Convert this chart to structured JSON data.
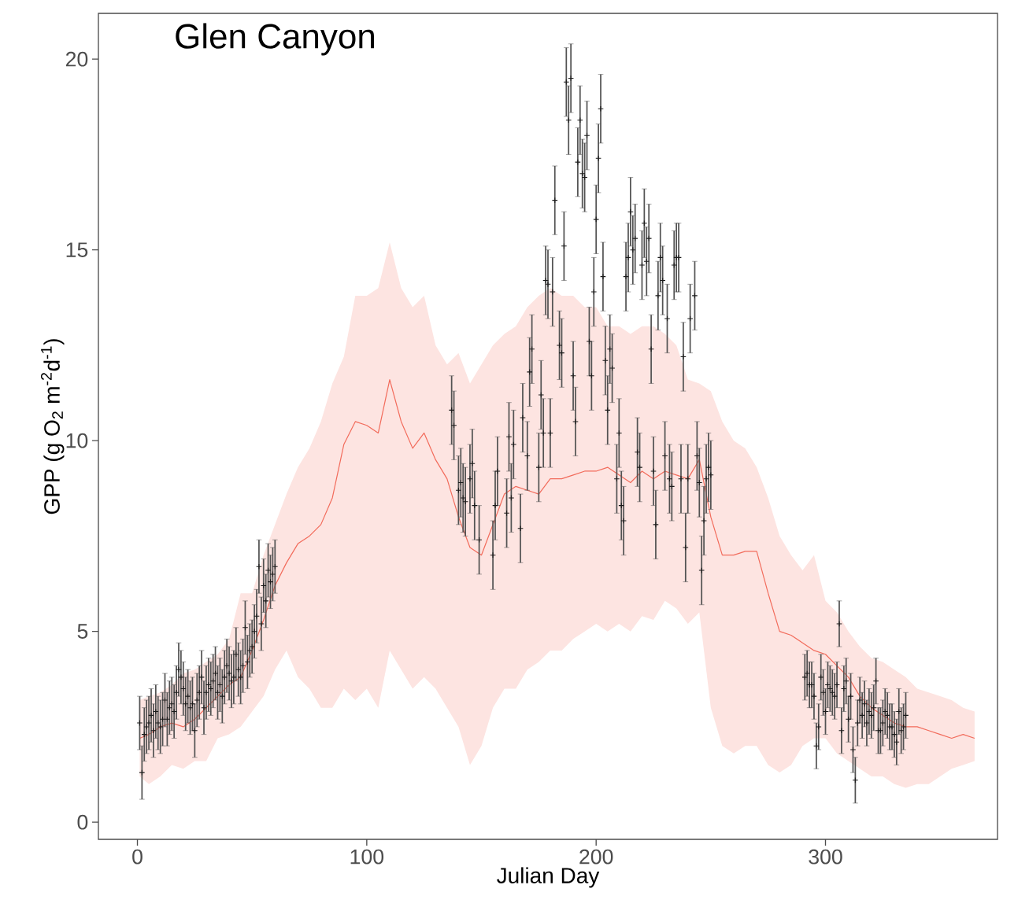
{
  "chart_data": {
    "type": "line",
    "title": "Glen Canyon",
    "xlabel": "Julian Day",
    "ylabel": "GPP (g O$_{2}$ m$^{-2}$d$^{-1}$)",
    "xlim": [
      -17,
      375
    ],
    "ylim": [
      -0.45,
      21.2
    ],
    "xticks": [
      0,
      100,
      200,
      300
    ],
    "yticks": [
      0,
      5,
      10,
      15,
      20
    ],
    "series": [
      {
        "color": "#f26b5b",
        "x": [
          1,
          5,
          10,
          15,
          20,
          25,
          30,
          35,
          40,
          45,
          50,
          55,
          60,
          65,
          70,
          75,
          80,
          85,
          90,
          95,
          100,
          105,
          110,
          115,
          120,
          125,
          130,
          135,
          140,
          145,
          150,
          155,
          160,
          165,
          170,
          175,
          180,
          185,
          190,
          195,
          200,
          205,
          210,
          215,
          220,
          225,
          230,
          235,
          240,
          245,
          250,
          255,
          260,
          265,
          270,
          275,
          280,
          285,
          290,
          295,
          300,
          305,
          310,
          315,
          320,
          325,
          330,
          335,
          340,
          345,
          350,
          355,
          360,
          365
        ],
        "lower": [
          1.2,
          1.0,
          1.2,
          1.5,
          1.4,
          1.6,
          1.6,
          2.2,
          2.3,
          2.5,
          2.9,
          3.3,
          4.0,
          4.5,
          3.8,
          3.5,
          3.0,
          3.0,
          3.5,
          3.2,
          3.5,
          3.0,
          4.5,
          4.0,
          3.5,
          3.8,
          3.5,
          3.0,
          2.5,
          1.5,
          2.0,
          3.0,
          3.5,
          3.5,
          4.0,
          4.2,
          4.5,
          4.5,
          4.8,
          5.0,
          5.2,
          5.0,
          5.2,
          5.0,
          5.4,
          5.3,
          5.8,
          5.6,
          5.2,
          5.5,
          3.0,
          2.0,
          1.8,
          2.0,
          2.0,
          1.5,
          1.3,
          1.5,
          2.0,
          2.2,
          2.2,
          1.8,
          1.6,
          1.4,
          1.2,
          1.2,
          1.0,
          0.9,
          1.0,
          1.0,
          1.2,
          1.4,
          1.5,
          1.6
        ],
        "upper": [
          3.2,
          3.3,
          3.4,
          3.6,
          3.9,
          4.0,
          4.2,
          4.4,
          4.8,
          6.0,
          6.0,
          7.0,
          7.8,
          8.6,
          9.3,
          9.8,
          10.5,
          11.5,
          12.2,
          13.8,
          13.8,
          14.0,
          15.2,
          14.0,
          13.5,
          13.8,
          12.5,
          12.0,
          12.3,
          11.5,
          12.0,
          12.5,
          12.8,
          13.0,
          13.5,
          13.8,
          14.0,
          13.8,
          13.8,
          13.5,
          13.5,
          13.0,
          13.0,
          12.8,
          13.0,
          13.0,
          12.8,
          12.5,
          11.6,
          11.5,
          11.3,
          10.5,
          10.0,
          9.8,
          9.3,
          8.5,
          7.5,
          7.0,
          6.6,
          7.0,
          5.8,
          5.5,
          5.0,
          4.6,
          4.3,
          4.2,
          4.0,
          3.8,
          3.5,
          3.4,
          3.3,
          3.2,
          3.0,
          2.9
        ],
        "values": [
          2.2,
          2.3,
          2.5,
          2.6,
          2.5,
          2.7,
          3.0,
          3.3,
          3.6,
          3.8,
          4.5,
          5.3,
          6.2,
          6.8,
          7.3,
          7.5,
          7.8,
          8.5,
          9.9,
          10.5,
          10.4,
          10.2,
          11.6,
          10.5,
          9.8,
          10.2,
          9.5,
          9.0,
          8.0,
          7.2,
          7.0,
          7.8,
          8.6,
          8.8,
          8.7,
          8.6,
          9.0,
          9.0,
          9.1,
          9.2,
          9.2,
          9.3,
          9.1,
          8.9,
          9.2,
          9.0,
          9.2,
          9.1,
          9.0,
          9.5,
          8.0,
          7.0,
          7.0,
          7.1,
          7.1,
          6.0,
          5.0,
          4.9,
          4.7,
          4.5,
          4.4,
          4.1,
          3.8,
          3.3,
          3.0,
          2.8,
          2.6,
          2.5,
          2.5,
          2.4,
          2.3,
          2.2,
          2.3,
          2.2
        ]
      },
      {
        "type": "scatter",
        "color": "#1a1a1a",
        "marker": "cross",
        "x": [
          1,
          2,
          3,
          4,
          5,
          6,
          7,
          8,
          9,
          10,
          11,
          12,
          13,
          14,
          15,
          16,
          17,
          18,
          19,
          20,
          21,
          22,
          23,
          24,
          25,
          26,
          27,
          28,
          29,
          30,
          31,
          32,
          33,
          34,
          35,
          36,
          37,
          38,
          39,
          40,
          41,
          42,
          43,
          44,
          45,
          46,
          47,
          48,
          49,
          50,
          51,
          52,
          53,
          54,
          55,
          56,
          57,
          58,
          59,
          60,
          137,
          138,
          140,
          141,
          142,
          143,
          145,
          146,
          147,
          149,
          155,
          156,
          157,
          161,
          162,
          163,
          164,
          167,
          168,
          170,
          171,
          172,
          175,
          176,
          177,
          178,
          179,
          180,
          181,
          182,
          184,
          185,
          186,
          187,
          188,
          189,
          190,
          191,
          192,
          193,
          194,
          195,
          196,
          197,
          198,
          199,
          200,
          201,
          202,
          203,
          204,
          205,
          206,
          207,
          209,
          210,
          211,
          212,
          213,
          214,
          215,
          216,
          217,
          218,
          219,
          220,
          221,
          222,
          223,
          224,
          225,
          226,
          227,
          228,
          229,
          230,
          231,
          232,
          233,
          234,
          235,
          236,
          237,
          238,
          239,
          240,
          241,
          243,
          244,
          245,
          246,
          247,
          248,
          249,
          250,
          291,
          292,
          293,
          294,
          295,
          296,
          297,
          298,
          299,
          300,
          301,
          302,
          303,
          304,
          305,
          306,
          307,
          308,
          309,
          310,
          311,
          312,
          313,
          314,
          315,
          316,
          317,
          318,
          319,
          320,
          321,
          322,
          323,
          324,
          325,
          326,
          327,
          328,
          329,
          330,
          331,
          332,
          333,
          334,
          335
        ],
        "values": [
          2.6,
          1.3,
          2.3,
          2.5,
          2.6,
          2.8,
          2.4,
          2.9,
          2.6,
          2.5,
          2.7,
          3.2,
          2.7,
          3.0,
          3.1,
          2.9,
          3.4,
          4.0,
          3.8,
          3.5,
          3.1,
          3.3,
          3.0,
          3.1,
          2.4,
          3.2,
          3.4,
          3.8,
          3.0,
          3.4,
          3.6,
          3.5,
          3.7,
          3.9,
          3.4,
          3.6,
          3.3,
          3.8,
          4.1,
          3.9,
          3.7,
          3.8,
          4.4,
          4.0,
          3.8,
          4.1,
          5.1,
          4.2,
          4.5,
          4.6,
          5.0,
          5.4,
          6.7,
          5.2,
          6.2,
          5.8,
          6.6,
          6.3,
          6.5,
          6.7,
          10.8,
          10.4,
          8.7,
          8.9,
          8.5,
          8.4,
          9.0,
          9.4,
          8.3,
          7.4,
          7.0,
          8.3,
          9.2,
          8.1,
          10.1,
          8.5,
          9.9,
          7.7,
          10.6,
          9.6,
          11.8,
          12.4,
          9.3,
          11.2,
          10.2,
          14.2,
          14.1,
          10.2,
          13.9,
          16.3,
          12.5,
          12.3,
          15.1,
          19.4,
          18.4,
          19.5,
          11.7,
          10.5,
          17.3,
          18.4,
          17.0,
          16.9,
          18.0,
          12.6,
          11.7,
          13.9,
          15.8,
          17.4,
          18.7,
          14.3,
          12.1,
          10.8,
          12.4,
          11.9,
          9.0,
          10.2,
          8.3,
          7.9,
          14.3,
          14.8,
          16.0,
          15.0,
          15.3,
          9.7,
          9.3,
          14.6,
          15.7,
          14.7,
          15.3,
          12.4,
          9.2,
          7.8,
          13.8,
          14.8,
          14.2,
          9.6,
          13.2,
          9.0,
          8.8,
          14.6,
          14.8,
          14.8,
          9.0,
          12.2,
          7.2,
          9.0,
          13.2,
          13.8,
          9.6,
          8.9,
          6.6,
          7.9,
          9.0,
          9.3,
          9.1,
          3.8,
          3.9,
          3.6,
          3.6,
          3.3,
          2.0,
          2.5,
          3.8,
          3.4,
          2.9,
          3.6,
          3.5,
          3.4,
          3.3,
          3.6,
          5.2,
          2.4,
          3.5,
          3.7,
          2.7,
          3.3,
          1.9,
          1.1,
          2.6,
          3.2,
          2.8,
          3.1,
          2.6,
          2.9,
          2.8,
          3.0,
          3.7,
          2.4,
          2.4,
          2.6,
          2.9,
          2.8,
          2.5,
          2.5,
          2.3,
          2.1,
          2.9,
          2.4,
          2.5,
          2.8
        ],
        "errors": [
          0.7,
          0.7,
          0.7,
          0.7,
          0.7,
          0.7,
          0.7,
          0.7,
          0.7,
          0.7,
          0.7,
          0.7,
          0.7,
          0.7,
          0.7,
          0.7,
          0.7,
          0.7,
          0.7,
          0.7,
          0.7,
          0.7,
          0.7,
          0.7,
          0.7,
          0.7,
          0.7,
          0.7,
          0.7,
          0.7,
          0.7,
          0.7,
          0.7,
          0.7,
          0.7,
          0.7,
          0.7,
          0.7,
          0.7,
          0.7,
          0.7,
          0.7,
          0.7,
          0.7,
          0.7,
          0.7,
          0.7,
          0.7,
          0.7,
          0.7,
          0.7,
          0.7,
          0.7,
          0.7,
          0.7,
          0.7,
          0.7,
          0.7,
          0.7,
          0.7,
          0.9,
          0.9,
          0.9,
          0.9,
          0.9,
          0.9,
          0.9,
          0.9,
          0.9,
          0.9,
          0.9,
          0.9,
          0.9,
          0.9,
          0.9,
          0.9,
          0.9,
          0.9,
          0.9,
          0.9,
          0.9,
          0.9,
          0.9,
          0.9,
          0.9,
          0.9,
          0.9,
          0.9,
          0.9,
          0.9,
          0.9,
          0.9,
          0.9,
          0.9,
          0.9,
          0.9,
          0.9,
          0.9,
          0.9,
          0.9,
          0.9,
          0.9,
          0.9,
          0.9,
          0.9,
          0.9,
          0.9,
          0.9,
          0.9,
          0.9,
          0.9,
          0.9,
          0.9,
          0.9,
          0.9,
          0.9,
          0.9,
          0.9,
          0.9,
          0.9,
          0.9,
          0.9,
          0.9,
          0.9,
          0.9,
          0.9,
          0.9,
          0.9,
          0.9,
          0.9,
          0.9,
          0.9,
          0.9,
          0.9,
          0.9,
          0.9,
          0.9,
          0.9,
          0.9,
          0.9,
          0.9,
          0.9,
          0.9,
          0.9,
          0.9,
          0.9,
          0.9,
          0.9,
          0.9,
          0.9,
          0.9,
          0.9,
          0.9,
          0.9,
          0.9,
          0.6,
          0.6,
          0.6,
          0.6,
          0.6,
          0.6,
          0.6,
          0.6,
          0.6,
          0.6,
          0.6,
          0.6,
          0.6,
          0.6,
          0.6,
          0.6,
          0.6,
          0.6,
          0.6,
          0.6,
          0.6,
          0.6,
          0.6,
          0.6,
          0.6,
          0.6,
          0.6,
          0.6,
          0.6,
          0.6,
          0.6,
          0.6,
          0.6,
          0.6,
          0.6,
          0.6,
          0.6,
          0.6,
          0.6,
          0.6,
          0.6,
          0.6,
          0.6,
          0.6,
          0.6
        ]
      }
    ]
  }
}
